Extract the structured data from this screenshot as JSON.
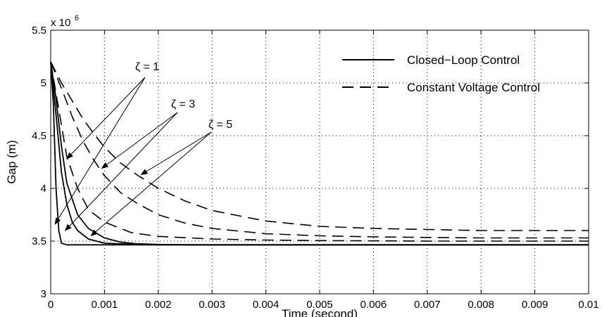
{
  "chart_data": {
    "type": "line",
    "xlabel": "Time (second)",
    "ylabel": "Gap (m)",
    "y_multiplier_label": "x 10",
    "y_multiplier_exp": "6",
    "xlim": [
      0,
      0.01
    ],
    "ylim": [
      3,
      5.5
    ],
    "grid": true,
    "x_ticks": [
      0,
      0.001,
      0.002,
      0.003,
      0.004,
      0.005,
      0.006,
      0.007,
      0.008,
      0.009,
      0.01
    ],
    "x_tick_labels": [
      "0",
      "0.001",
      "0.002",
      "0.003",
      "0.004",
      "0.005",
      "0.006",
      "0.007",
      "0.008",
      "0.009",
      "0.01"
    ],
    "y_ticks": [
      3,
      3.5,
      4,
      4.5,
      5,
      5.5
    ],
    "y_tick_labels": [
      "3",
      "3.5",
      "4",
      "4.5",
      "5",
      "5.5"
    ],
    "legend": {
      "position": "top-right",
      "entries": [
        {
          "label": "Closed−Loop Control",
          "style": "solid"
        },
        {
          "label": "Constant Voltage Control",
          "style": "dashed"
        }
      ]
    },
    "annotations": [
      {
        "text": "ζ = 1",
        "targets": [
          [
            0.0003,
            4.28
          ],
          [
            8e-05,
            3.66
          ]
        ]
      },
      {
        "text": "ζ = 3",
        "targets": [
          [
            0.00095,
            4.19
          ],
          [
            0.00027,
            3.6
          ]
        ]
      },
      {
        "text": "ζ = 5",
        "targets": [
          [
            0.00168,
            4.13
          ],
          [
            0.00075,
            3.55
          ]
        ]
      }
    ],
    "series": [
      {
        "style": "solid",
        "x": [
          0,
          5e-05,
          0.0001,
          0.00015,
          0.0002,
          0.0003,
          0.01
        ],
        "y": [
          5.2,
          4.8,
          4.0,
          3.6,
          3.48,
          3.465,
          3.465
        ]
      },
      {
        "style": "solid",
        "x": [
          0,
          0.0001,
          0.0002,
          0.0003,
          0.0004,
          0.0005,
          0.0007,
          0.001,
          0.0015,
          0.002,
          0.01
        ],
        "y": [
          5.2,
          4.7,
          4.15,
          3.85,
          3.68,
          3.6,
          3.52,
          3.48,
          3.47,
          3.465,
          3.465
        ]
      },
      {
        "style": "solid",
        "x": [
          0,
          0.0001,
          0.0002,
          0.0003,
          0.0005,
          0.0007,
          0.001,
          0.0013,
          0.0016,
          0.002,
          0.0026,
          0.01
        ],
        "y": [
          5.2,
          4.85,
          4.4,
          4.05,
          3.75,
          3.62,
          3.53,
          3.49,
          3.475,
          3.468,
          3.465,
          3.465
        ]
      },
      {
        "style": "dashed",
        "x": [
          0,
          0.0001,
          0.0002,
          0.0003,
          0.0005,
          0.0007,
          0.001,
          0.0015,
          0.002,
          0.003,
          0.004,
          0.005,
          0.007,
          0.01
        ],
        "y": [
          5.2,
          4.9,
          4.6,
          4.3,
          4.0,
          3.8,
          3.68,
          3.58,
          3.545,
          3.52,
          3.51,
          3.505,
          3.5,
          3.5
        ]
      },
      {
        "style": "dashed",
        "x": [
          0,
          0.0002,
          0.0004,
          0.0006,
          0.0008,
          0.001,
          0.0013,
          0.0016,
          0.002,
          0.0025,
          0.003,
          0.004,
          0.005,
          0.006,
          0.007,
          0.008,
          0.009,
          0.01
        ],
        "y": [
          5.2,
          4.95,
          4.68,
          4.45,
          4.27,
          4.12,
          3.96,
          3.86,
          3.75,
          3.67,
          3.62,
          3.57,
          3.55,
          3.54,
          3.535,
          3.53,
          3.53,
          3.53
        ]
      },
      {
        "style": "dashed",
        "x": [
          0,
          0.0002,
          0.0004,
          0.0006,
          0.0008,
          0.001,
          0.0013,
          0.0016,
          0.002,
          0.0025,
          0.003,
          0.004,
          0.005,
          0.006,
          0.007,
          0.008,
          0.009,
          0.01
        ],
        "y": [
          5.2,
          5.0,
          4.83,
          4.66,
          4.52,
          4.39,
          4.24,
          4.13,
          4.0,
          3.88,
          3.79,
          3.69,
          3.64,
          3.62,
          3.61,
          3.6,
          3.6,
          3.6
        ]
      }
    ]
  }
}
